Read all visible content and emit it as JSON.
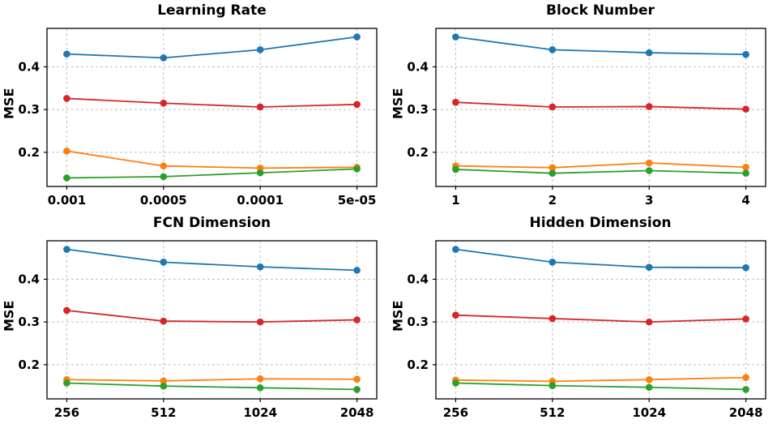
{
  "chart_data": [
    {
      "type": "line",
      "title": "Learning Rate",
      "ylabel": "MSE",
      "xlabel": "",
      "categories": [
        "0.001",
        "0.0005",
        "0.0001",
        "5e-05"
      ],
      "yticks": [
        "0.2",
        "0.3",
        "0.4"
      ],
      "ylim": [
        0.12,
        0.49
      ],
      "grid": "dashed",
      "legend_position": "none",
      "series": [
        {
          "name": "series-blue",
          "color": "#1f77b4",
          "values": [
            0.43,
            0.421,
            0.44,
            0.47
          ]
        },
        {
          "name": "series-red",
          "color": "#d62728",
          "values": [
            0.326,
            0.315,
            0.306,
            0.312
          ]
        },
        {
          "name": "series-orange",
          "color": "#ff7f0e",
          "values": [
            0.203,
            0.168,
            0.163,
            0.165
          ]
        },
        {
          "name": "series-green",
          "color": "#2ca02c",
          "values": [
            0.14,
            0.143,
            0.152,
            0.161
          ]
        }
      ]
    },
    {
      "type": "line",
      "title": "Block Number",
      "ylabel": "MSE",
      "xlabel": "",
      "categories": [
        "1",
        "2",
        "3",
        "4"
      ],
      "yticks": [
        "0.2",
        "0.3",
        "0.4"
      ],
      "ylim": [
        0.12,
        0.49
      ],
      "grid": "dashed",
      "legend_position": "none",
      "series": [
        {
          "name": "series-blue",
          "color": "#1f77b4",
          "values": [
            0.47,
            0.44,
            0.433,
            0.429
          ]
        },
        {
          "name": "series-red",
          "color": "#d62728",
          "values": [
            0.317,
            0.306,
            0.307,
            0.301
          ]
        },
        {
          "name": "series-orange",
          "color": "#ff7f0e",
          "values": [
            0.168,
            0.164,
            0.175,
            0.165
          ]
        },
        {
          "name": "series-green",
          "color": "#2ca02c",
          "values": [
            0.16,
            0.151,
            0.157,
            0.151
          ]
        }
      ]
    },
    {
      "type": "line",
      "title": "FCN Dimension",
      "ylabel": "MSE",
      "xlabel": "",
      "categories": [
        "256",
        "512",
        "1024",
        "2048"
      ],
      "yticks": [
        "0.2",
        "0.3",
        "0.4"
      ],
      "ylim": [
        0.12,
        0.49
      ],
      "grid": "dashed",
      "legend_position": "none",
      "series": [
        {
          "name": "series-blue",
          "color": "#1f77b4",
          "values": [
            0.47,
            0.44,
            0.429,
            0.421
          ]
        },
        {
          "name": "series-red",
          "color": "#d62728",
          "values": [
            0.327,
            0.302,
            0.3,
            0.305
          ]
        },
        {
          "name": "series-orange",
          "color": "#ff7f0e",
          "values": [
            0.165,
            0.162,
            0.167,
            0.166
          ]
        },
        {
          "name": "series-green",
          "color": "#2ca02c",
          "values": [
            0.157,
            0.15,
            0.146,
            0.142
          ]
        }
      ]
    },
    {
      "type": "line",
      "title": "Hidden Dimension",
      "ylabel": "MSE",
      "xlabel": "",
      "categories": [
        "256",
        "512",
        "1024",
        "2048"
      ],
      "yticks": [
        "0.2",
        "0.3",
        "0.4"
      ],
      "ylim": [
        0.12,
        0.49
      ],
      "grid": "dashed",
      "legend_position": "none",
      "series": [
        {
          "name": "series-blue",
          "color": "#1f77b4",
          "values": [
            0.47,
            0.44,
            0.428,
            0.427
          ]
        },
        {
          "name": "series-red",
          "color": "#d62728",
          "values": [
            0.316,
            0.308,
            0.3,
            0.307
          ]
        },
        {
          "name": "series-orange",
          "color": "#ff7f0e",
          "values": [
            0.164,
            0.161,
            0.165,
            0.17
          ]
        },
        {
          "name": "series-green",
          "color": "#2ca02c",
          "values": [
            0.157,
            0.151,
            0.147,
            0.142
          ]
        }
      ]
    }
  ]
}
